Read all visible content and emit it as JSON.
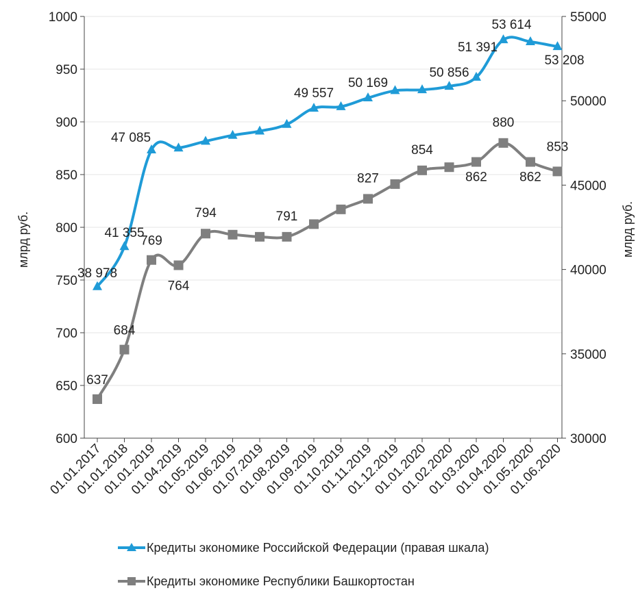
{
  "chart_data": {
    "type": "line",
    "categories": [
      "01.01.2017",
      "01.01.2018",
      "01.01.2019",
      "01.04.2019",
      "01.05.2019",
      "01.06.2019",
      "01.07.2019",
      "01.08.2019",
      "01.09.2019",
      "01.10.2019",
      "01.11.2019",
      "01.12.2019",
      "01.01.2020",
      "01.02.2020",
      "01.03.2020",
      "01.04.2020",
      "01.05.2020",
      "01.06.2020"
    ],
    "y_left": {
      "label": "млрд  руб.",
      "range": [
        600,
        1000
      ],
      "ticks": [
        "600",
        "650",
        "700",
        "750",
        "800",
        "850",
        "900",
        "950",
        "1000"
      ]
    },
    "y_right": {
      "label": "млрд руб.",
      "range": [
        30000,
        55000
      ],
      "ticks": [
        "30000",
        "35000",
        "40000",
        "45000",
        "50000",
        "55000"
      ]
    },
    "grid": true,
    "legend_placement": "bottom",
    "series": [
      {
        "name": "Кредиты экономике Российской Федерации (правая шкала)",
        "axis": "right",
        "color": "#1f9bd7",
        "marker": "triangle",
        "values": [
          38978,
          41355,
          47085,
          47200,
          47600,
          47950,
          48200,
          48600,
          49557,
          49650,
          50169,
          50600,
          50650,
          50856,
          51391,
          53614,
          53500,
          53208
        ],
        "labels": [
          "38 978",
          "41 355",
          "47 085",
          "",
          "",
          "",
          "",
          "",
          "49 557",
          "",
          "50 169",
          "",
          "",
          "50 856",
          "51 391",
          "53 614",
          "",
          "53 208"
        ]
      },
      {
        "name": "Кредиты экономике Республики Башкортостан",
        "axis": "left",
        "color": "#7f7f7f",
        "marker": "square",
        "values": [
          637,
          684,
          769,
          764,
          794,
          793,
          791,
          791,
          803,
          817,
          827,
          841,
          854,
          857,
          862,
          880,
          862,
          853
        ],
        "labels": [
          "637",
          "684",
          "769",
          "764",
          "794",
          "",
          "",
          "791",
          "",
          "",
          "827",
          "",
          "854",
          "",
          "862",
          "880",
          "862",
          "853"
        ]
      }
    ]
  }
}
